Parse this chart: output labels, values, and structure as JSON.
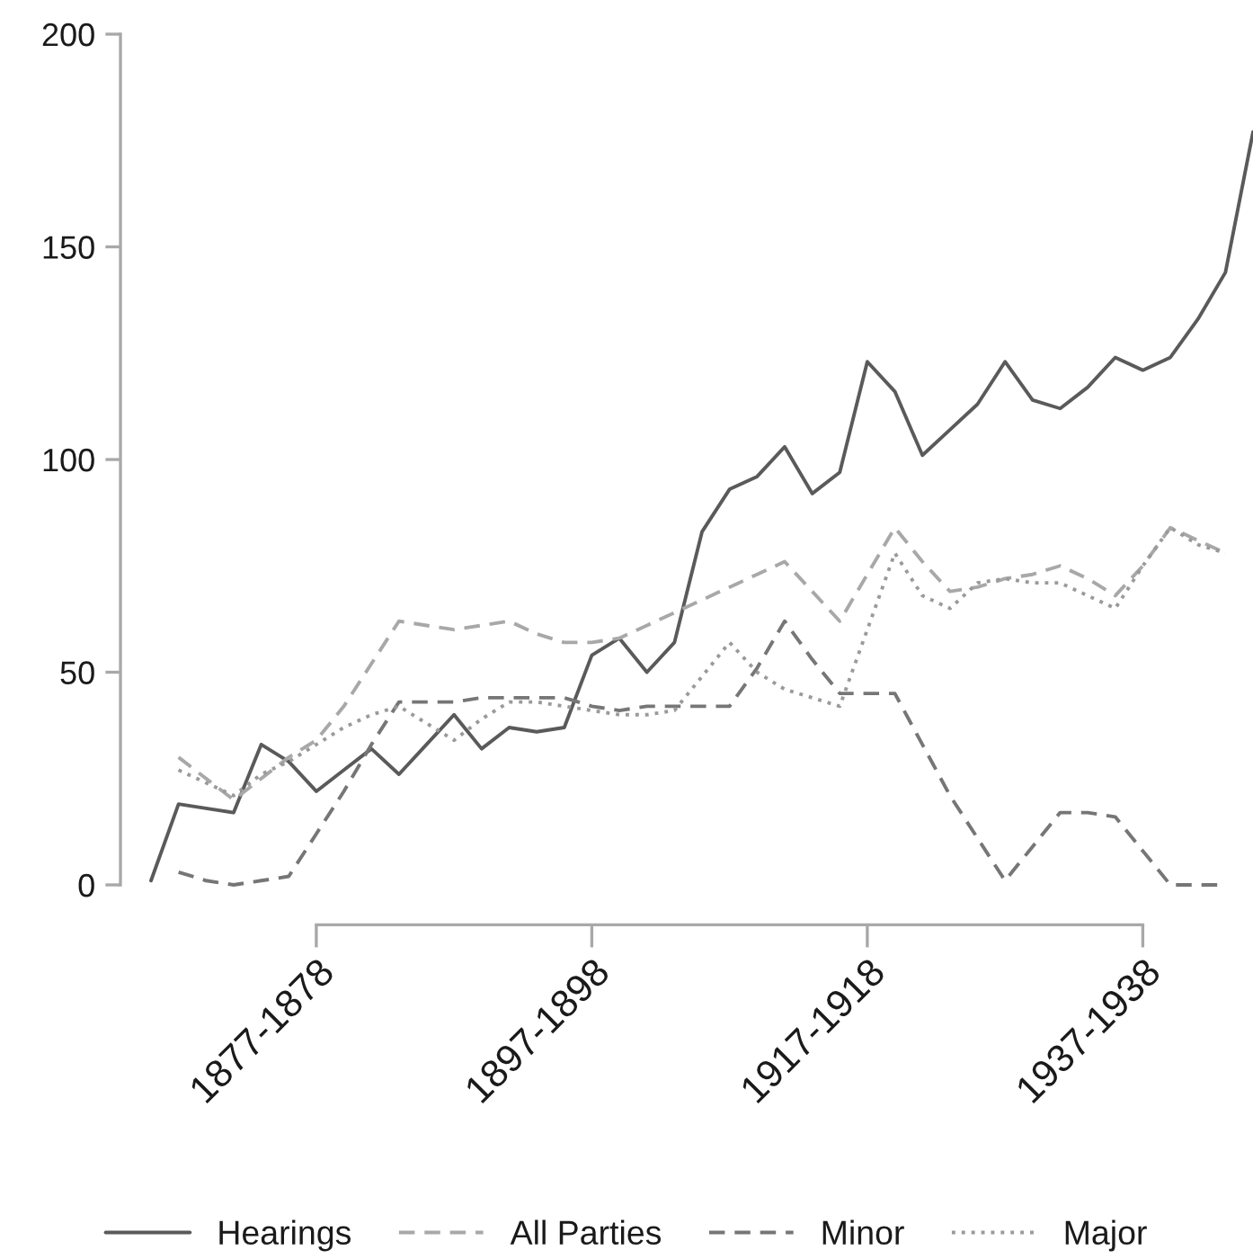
{
  "chart_data": {
    "type": "line",
    "categories": [
      null,
      null,
      null,
      null,
      null,
      null,
      "1877-1878",
      null,
      null,
      null,
      null,
      null,
      null,
      null,
      null,
      null,
      "1897-1898",
      null,
      null,
      null,
      null,
      null,
      null,
      null,
      null,
      null,
      "1917-1918",
      null,
      null,
      null,
      null,
      null,
      null,
      null,
      null,
      null,
      "1937-1938",
      null,
      null,
      null,
      null
    ],
    "series": [
      {
        "name": "Hearings",
        "color": "#5a5a5a",
        "line_style": "solid",
        "values": [
          1,
          19,
          18,
          17,
          33,
          29,
          22,
          27,
          32,
          26,
          33,
          40,
          32,
          37,
          36,
          37,
          54,
          58,
          50,
          57,
          83,
          93,
          96,
          103,
          92,
          97,
          123,
          116,
          101,
          107,
          113,
          123,
          114,
          112,
          117,
          124,
          121,
          124,
          133,
          144,
          177
        ]
      },
      {
        "name": "All Parties",
        "color": "#a8a8a8",
        "line_style": "dashed",
        "values": [
          null,
          30,
          25,
          20,
          25,
          30,
          34,
          42,
          52,
          62,
          61,
          60,
          61,
          62,
          59,
          57,
          57,
          58,
          61,
          64,
          67,
          70,
          73,
          76,
          69,
          62,
          73,
          84,
          76,
          69,
          70,
          72,
          73,
          75,
          72,
          68,
          75,
          84,
          81,
          78,
          null
        ]
      },
      {
        "name": "Minor",
        "color": "#767676",
        "line_style": "dashed",
        "values": [
          null,
          3,
          1,
          0,
          1,
          2,
          12,
          22,
          33,
          43,
          43,
          43,
          44,
          44,
          44,
          44,
          42,
          41,
          42,
          42,
          42,
          42,
          51,
          62,
          53,
          45,
          45,
          45,
          33,
          21,
          11,
          1,
          9,
          17,
          17,
          16,
          8,
          0,
          0,
          0,
          null
        ]
      },
      {
        "name": "Major",
        "color": "#9a9a9a",
        "line_style": "dotted",
        "values": [
          null,
          27,
          24,
          21,
          26,
          29,
          33,
          37,
          40,
          42,
          38,
          34,
          39,
          43,
          43,
          42,
          41,
          40,
          40,
          41,
          49,
          57,
          50,
          46,
          44,
          42,
          60,
          78,
          68,
          65,
          71,
          72,
          71,
          71,
          68,
          65,
          75,
          84,
          80,
          78,
          null
        ]
      }
    ],
    "ylim": [
      0,
      200
    ],
    "yticks": [
      0,
      50,
      100,
      150,
      200
    ],
    "legend": "bottom"
  }
}
